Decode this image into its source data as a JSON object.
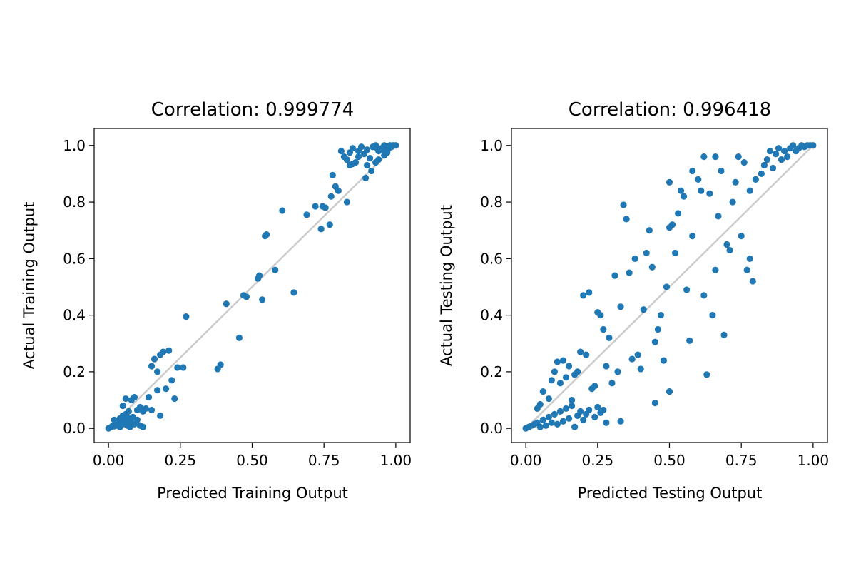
{
  "chart_data": [
    {
      "type": "scatter",
      "title": "Correlation: 0.999774",
      "xlabel": "Predicted Training Output",
      "ylabel": "Actual Training Output",
      "xlim": [
        -0.05,
        1.05
      ],
      "ylim": [
        -0.05,
        1.06
      ],
      "xticks": [
        0.0,
        0.25,
        0.5,
        0.75,
        1.0
      ],
      "xtick_labels": [
        "0.00",
        "0.25",
        "0.50",
        "0.75",
        "1.00"
      ],
      "yticks": [
        0.0,
        0.2,
        0.4,
        0.6,
        0.8,
        1.0
      ],
      "ytick_labels": [
        "0.0",
        "0.2",
        "0.4",
        "0.6",
        "0.8",
        "1.0"
      ],
      "identity_line": {
        "from": [
          0,
          0
        ],
        "to": [
          1,
          1
        ],
        "color": "#cccccc"
      },
      "grid": false,
      "marker_color": "#1f77b4",
      "points": [
        [
          0.0,
          0.0
        ],
        [
          0.01,
          0.005
        ],
        [
          0.015,
          0.01
        ],
        [
          0.02,
          0.008
        ],
        [
          0.025,
          0.015
        ],
        [
          0.03,
          0.01
        ],
        [
          0.035,
          0.02
        ],
        [
          0.04,
          0.005
        ],
        [
          0.045,
          0.025
        ],
        [
          0.05,
          0.015
        ],
        [
          0.055,
          0.03
        ],
        [
          0.06,
          0.02
        ],
        [
          0.065,
          0.01
        ],
        [
          0.07,
          0.035
        ],
        [
          0.075,
          0.005
        ],
        [
          0.08,
          0.02
        ],
        [
          0.085,
          0.04
        ],
        [
          0.09,
          0.015
        ],
        [
          0.1,
          0.03
        ],
        [
          0.11,
          0.01
        ],
        [
          0.12,
          0.005
        ],
        [
          0.02,
          0.03
        ],
        [
          0.03,
          0.025
        ],
        [
          0.04,
          0.035
        ],
        [
          0.05,
          0.045
        ],
        [
          0.06,
          0.05
        ],
        [
          0.07,
          0.06
        ],
        [
          0.05,
          0.08
        ],
        [
          0.08,
          0.1
        ],
        [
          0.06,
          0.105
        ],
        [
          0.09,
          0.11
        ],
        [
          0.1,
          0.065
        ],
        [
          0.11,
          0.075
        ],
        [
          0.12,
          0.06
        ],
        [
          0.13,
          0.07
        ],
        [
          0.14,
          0.11
        ],
        [
          0.15,
          0.22
        ],
        [
          0.16,
          0.245
        ],
        [
          0.17,
          0.2
        ],
        [
          0.18,
          0.26
        ],
        [
          0.19,
          0.27
        ],
        [
          0.2,
          0.14
        ],
        [
          0.21,
          0.275
        ],
        [
          0.22,
          0.17
        ],
        [
          0.23,
          0.105
        ],
        [
          0.24,
          0.215
        ],
        [
          0.26,
          0.215
        ],
        [
          0.27,
          0.395
        ],
        [
          0.17,
          0.135
        ],
        [
          0.18,
          0.045
        ],
        [
          0.15,
          0.065
        ],
        [
          0.38,
          0.21
        ],
        [
          0.39,
          0.225
        ],
        [
          0.41,
          0.44
        ],
        [
          0.455,
          0.32
        ],
        [
          0.47,
          0.47
        ],
        [
          0.48,
          0.465
        ],
        [
          0.52,
          0.53
        ],
        [
          0.525,
          0.54
        ],
        [
          0.535,
          0.455
        ],
        [
          0.545,
          0.68
        ],
        [
          0.55,
          0.685
        ],
        [
          0.58,
          0.56
        ],
        [
          0.605,
          0.77
        ],
        [
          0.645,
          0.48
        ],
        [
          0.69,
          0.755
        ],
        [
          0.72,
          0.785
        ],
        [
          0.74,
          0.705
        ],
        [
          0.745,
          0.785
        ],
        [
          0.755,
          0.78
        ],
        [
          0.77,
          0.72
        ],
        [
          0.775,
          0.82
        ],
        [
          0.78,
          0.895
        ],
        [
          0.79,
          0.855
        ],
        [
          0.8,
          0.84
        ],
        [
          0.83,
          0.8
        ],
        [
          0.82,
          0.96
        ],
        [
          0.81,
          0.98
        ],
        [
          0.83,
          0.95
        ],
        [
          0.84,
          0.975
        ],
        [
          0.85,
          0.99
        ],
        [
          0.86,
          0.94
        ],
        [
          0.87,
          0.96
        ],
        [
          0.88,
          0.995
        ],
        [
          0.89,
          0.97
        ],
        [
          0.9,
          0.985
        ],
        [
          0.91,
          0.955
        ],
        [
          0.92,
          0.995
        ],
        [
          0.93,
          1.0
        ],
        [
          0.94,
          0.98
        ],
        [
          0.95,
          0.99
        ],
        [
          0.96,
          1.0
        ],
        [
          0.97,
          0.995
        ],
        [
          0.98,
          1.0
        ],
        [
          0.99,
          1.0
        ],
        [
          1.0,
          1.0
        ],
        [
          0.9,
          0.93
        ],
        [
          0.895,
          0.885
        ],
        [
          0.915,
          0.91
        ],
        [
          0.93,
          0.94
        ],
        [
          0.94,
          0.95
        ],
        [
          0.96,
          0.965
        ],
        [
          0.97,
          0.975
        ],
        [
          0.85,
          0.935
        ],
        [
          0.84,
          0.93
        ],
        [
          0.935,
          0.99
        ],
        [
          0.955,
          0.985
        ],
        [
          0.975,
          0.99
        ],
        [
          0.985,
          0.995
        ],
        [
          0.87,
          0.98
        ]
      ]
    },
    {
      "type": "scatter",
      "title": "Correlation: 0.996418",
      "xlabel": "Predicted Testing Output",
      "ylabel": "Actual Testing Output",
      "xlim": [
        -0.05,
        1.05
      ],
      "ylim": [
        -0.05,
        1.06
      ],
      "xticks": [
        0.0,
        0.25,
        0.5,
        0.75,
        1.0
      ],
      "xtick_labels": [
        "0.00",
        "0.25",
        "0.50",
        "0.75",
        "1.00"
      ],
      "yticks": [
        0.0,
        0.2,
        0.4,
        0.6,
        0.8,
        1.0
      ],
      "ytick_labels": [
        "0.0",
        "0.2",
        "0.4",
        "0.6",
        "0.8",
        "1.0"
      ],
      "identity_line": {
        "from": [
          0,
          0
        ],
        "to": [
          1,
          1
        ],
        "color": "#cccccc"
      },
      "grid": false,
      "marker_color": "#1f77b4",
      "points": [
        [
          0.0,
          0.0
        ],
        [
          0.01,
          0.005
        ],
        [
          0.02,
          0.01
        ],
        [
          0.03,
          0.015
        ],
        [
          0.04,
          0.02
        ],
        [
          0.05,
          0.005
        ],
        [
          0.06,
          0.03
        ],
        [
          0.07,
          0.01
        ],
        [
          0.08,
          0.04
        ],
        [
          0.09,
          0.02
        ],
        [
          0.1,
          0.05
        ],
        [
          0.11,
          0.015
        ],
        [
          0.12,
          0.06
        ],
        [
          0.13,
          0.025
        ],
        [
          0.14,
          0.07
        ],
        [
          0.15,
          0.035
        ],
        [
          0.16,
          0.08
        ],
        [
          0.17,
          0.005
        ],
        [
          0.18,
          0.045
        ],
        [
          0.19,
          0.06
        ],
        [
          0.2,
          0.03
        ],
        [
          0.21,
          0.05
        ],
        [
          0.22,
          0.065
        ],
        [
          0.24,
          0.04
        ],
        [
          0.25,
          0.075
        ],
        [
          0.26,
          0.055
        ],
        [
          0.27,
          0.065
        ],
        [
          0.28,
          0.02
        ],
        [
          0.33,
          0.025
        ],
        [
          0.04,
          0.07
        ],
        [
          0.05,
          0.085
        ],
        [
          0.06,
          0.13
        ],
        [
          0.08,
          0.105
        ],
        [
          0.09,
          0.17
        ],
        [
          0.1,
          0.2
        ],
        [
          0.11,
          0.235
        ],
        [
          0.12,
          0.16
        ],
        [
          0.13,
          0.24
        ],
        [
          0.14,
          0.18
        ],
        [
          0.15,
          0.22
        ],
        [
          0.16,
          0.1
        ],
        [
          0.17,
          0.19
        ],
        [
          0.18,
          0.2
        ],
        [
          0.19,
          0.27
        ],
        [
          0.2,
          0.47
        ],
        [
          0.21,
          0.26
        ],
        [
          0.22,
          0.48
        ],
        [
          0.23,
          0.14
        ],
        [
          0.24,
          0.15
        ],
        [
          0.25,
          0.41
        ],
        [
          0.26,
          0.4
        ],
        [
          0.27,
          0.35
        ],
        [
          0.28,
          0.22
        ],
        [
          0.29,
          0.32
        ],
        [
          0.3,
          0.16
        ],
        [
          0.31,
          0.54
        ],
        [
          0.32,
          0.2
        ],
        [
          0.33,
          0.43
        ],
        [
          0.34,
          0.79
        ],
        [
          0.35,
          0.74
        ],
        [
          0.36,
          0.55
        ],
        [
          0.37,
          0.245
        ],
        [
          0.38,
          0.6
        ],
        [
          0.39,
          0.26
        ],
        [
          0.4,
          0.21
        ],
        [
          0.41,
          0.42
        ],
        [
          0.42,
          0.62
        ],
        [
          0.43,
          0.7
        ],
        [
          0.44,
          0.57
        ],
        [
          0.45,
          0.305
        ],
        [
          0.46,
          0.35
        ],
        [
          0.47,
          0.4
        ],
        [
          0.48,
          0.24
        ],
        [
          0.49,
          0.5
        ],
        [
          0.5,
          0.87
        ],
        [
          0.51,
          0.72
        ],
        [
          0.52,
          0.62
        ],
        [
          0.53,
          0.76
        ],
        [
          0.54,
          0.84
        ],
        [
          0.55,
          0.82
        ],
        [
          0.56,
          0.49
        ],
        [
          0.57,
          0.31
        ],
        [
          0.58,
          0.68
        ],
        [
          0.6,
          0.88
        ],
        [
          0.61,
          0.84
        ],
        [
          0.62,
          0.47
        ],
        [
          0.63,
          0.19
        ],
        [
          0.64,
          0.83
        ],
        [
          0.65,
          0.4
        ],
        [
          0.66,
          0.56
        ],
        [
          0.67,
          0.75
        ],
        [
          0.68,
          0.91
        ],
        [
          0.69,
          0.33
        ],
        [
          0.7,
          0.65
        ],
        [
          0.71,
          0.63
        ],
        [
          0.72,
          0.8
        ],
        [
          0.73,
          0.87
        ],
        [
          0.74,
          0.96
        ],
        [
          0.76,
          0.94
        ],
        [
          0.78,
          0.84
        ],
        [
          0.8,
          0.88
        ],
        [
          0.82,
          0.9
        ],
        [
          0.83,
          0.93
        ],
        [
          0.84,
          0.95
        ],
        [
          0.85,
          0.98
        ],
        [
          0.86,
          0.92
        ],
        [
          0.87,
          0.97
        ],
        [
          0.88,
          0.99
        ],
        [
          0.89,
          0.95
        ],
        [
          0.9,
          0.98
        ],
        [
          0.91,
          0.96
        ],
        [
          0.92,
          0.99
        ],
        [
          0.93,
          1.0
        ],
        [
          0.94,
          0.98
        ],
        [
          0.95,
          0.99
        ],
        [
          0.96,
          1.0
        ],
        [
          0.97,
          0.995
        ],
        [
          0.98,
          1.0
        ],
        [
          0.99,
          1.0
        ],
        [
          1.0,
          1.0
        ],
        [
          0.79,
          0.52
        ],
        [
          0.78,
          0.6
        ],
        [
          0.77,
          0.56
        ],
        [
          0.75,
          0.68
        ],
        [
          0.66,
          0.96
        ],
        [
          0.62,
          0.96
        ],
        [
          0.58,
          0.91
        ],
        [
          0.5,
          0.71
        ],
        [
          0.5,
          0.13
        ],
        [
          0.45,
          0.09
        ]
      ]
    }
  ]
}
